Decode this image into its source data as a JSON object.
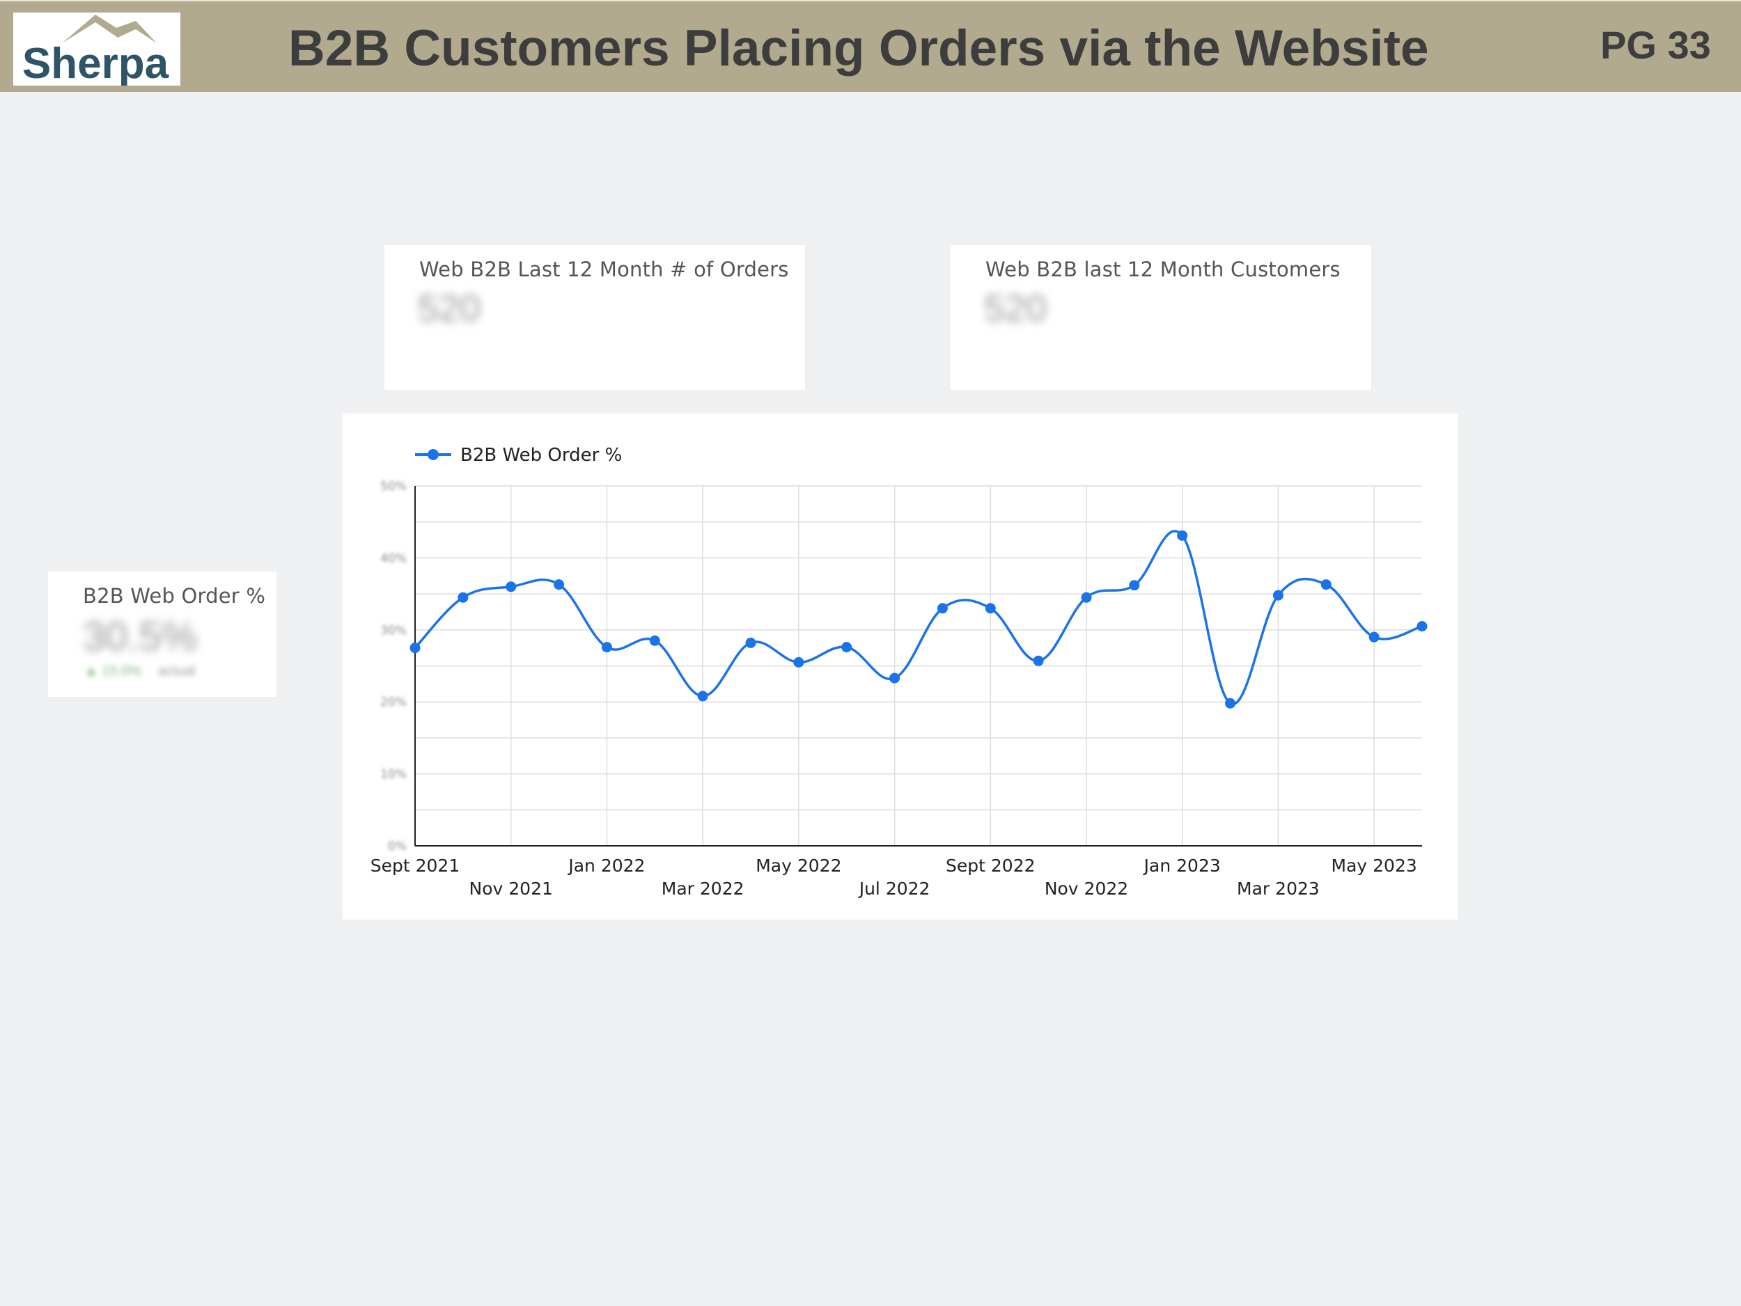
{
  "header": {
    "logo_text": "Sherpa",
    "title": "B2B Customers Placing Orders via the Website",
    "page_number": "PG 33"
  },
  "scorecards": {
    "orders": {
      "title": "Web B2B Last 12 Month # of Orders",
      "value": "520"
    },
    "customers": {
      "title": "Web B2B last 12 Month Customers",
      "value": "520"
    },
    "web_order_pct": {
      "title": "B2B Web Order %",
      "value": "30.5%",
      "delta": "▲ 15.0%",
      "delta_note": "actual"
    }
  },
  "colors": {
    "header_bg": "#b1aa8e",
    "series": "#1a73e8",
    "logo_text": "#2f5468",
    "logo_mountain": "#b1aa8e"
  },
  "chart_data": {
    "type": "line",
    "title": "",
    "xlabel": "",
    "ylabel": "",
    "legend": {
      "position": "top-left",
      "entries": [
        "B2B Web Order %"
      ]
    },
    "grid": true,
    "y_ticks": [
      "50%",
      "40%",
      "30%",
      "20%",
      "10%",
      "0%"
    ],
    "ylim": [
      0,
      50
    ],
    "x_tick_labels": [
      {
        "label": "Sept 2021",
        "index": 0,
        "row": 0
      },
      {
        "label": "Nov 2021",
        "index": 2,
        "row": 1
      },
      {
        "label": "Jan 2022",
        "index": 4,
        "row": 0
      },
      {
        "label": "Mar 2022",
        "index": 6,
        "row": 1
      },
      {
        "label": "May 2022",
        "index": 8,
        "row": 0
      },
      {
        "label": "Jul 2022",
        "index": 10,
        "row": 1
      },
      {
        "label": "Sept 2022",
        "index": 12,
        "row": 0
      },
      {
        "label": "Nov 2022",
        "index": 14,
        "row": 1
      },
      {
        "label": "Jan 2023",
        "index": 16,
        "row": 0
      },
      {
        "label": "Mar 2023",
        "index": 18,
        "row": 1
      },
      {
        "label": "May 2023",
        "index": 20,
        "row": 0
      }
    ],
    "x": [
      "2021-09",
      "2021-10",
      "2021-11",
      "2021-12",
      "2022-01",
      "2022-02",
      "2022-03",
      "2022-04",
      "2022-05",
      "2022-06",
      "2022-07",
      "2022-08",
      "2022-09",
      "2022-10",
      "2022-11",
      "2022-12",
      "2023-01",
      "2023-02",
      "2023-03",
      "2023-04",
      "2023-05",
      "2023-06"
    ],
    "series": [
      {
        "name": "B2B Web Order %",
        "values": [
          27.5,
          34.5,
          36.0,
          36.3,
          27.6,
          28.5,
          20.8,
          28.2,
          25.5,
          27.6,
          23.3,
          33.0,
          33.0,
          25.7,
          34.5,
          36.2,
          43.1,
          19.8,
          34.8,
          36.3,
          29.0,
          30.5
        ]
      }
    ]
  }
}
